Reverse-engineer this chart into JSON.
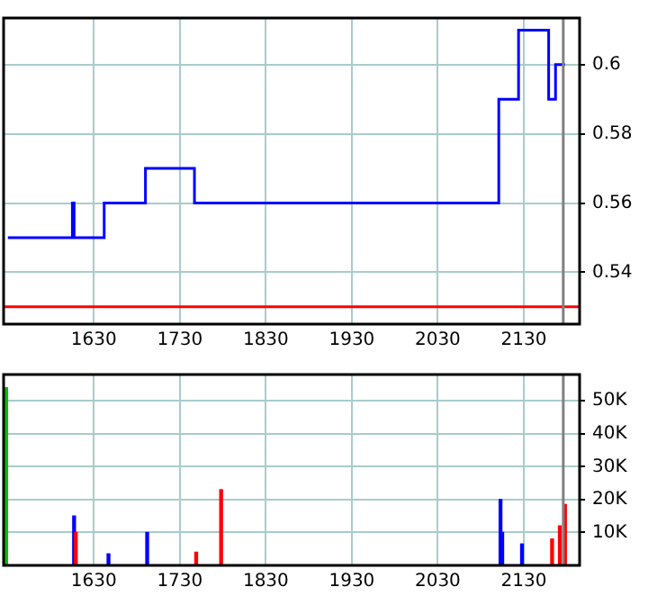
{
  "chart_data": [
    {
      "type": "step",
      "x": [
        1530,
        1605,
        1607,
        1642,
        1690,
        1747,
        2101,
        2124,
        2159,
        2167,
        2178
      ],
      "series": [
        {
          "color": "#0000ff",
          "values": [
            0.55,
            0.56,
            0.55,
            0.56,
            0.57,
            0.56,
            0.59,
            0.61,
            0.59,
            0.6,
            0.6
          ]
        }
      ],
      "xlim": [
        1525,
        2195
      ],
      "xticks": [
        1630,
        1730,
        1830,
        1930,
        2030,
        2130
      ],
      "ylim": [
        0.525,
        0.6135
      ],
      "yticks": [
        0.54,
        0.56,
        0.58,
        0.6
      ],
      "grid": true,
      "legend": false,
      "ref_lines": [
        {
          "axis": "y",
          "value": 0.53,
          "color": "#ff0000"
        },
        {
          "axis": "x",
          "value": 2176,
          "color": "#808080"
        }
      ]
    },
    {
      "type": "bar",
      "x": [
        1528,
        1607,
        1609,
        1647,
        1692,
        1749,
        1778,
        2103,
        2105,
        2128,
        2163,
        2172,
        2178
      ],
      "series": [
        {
          "values": [
            54000,
            15000,
            10000,
            3500,
            10000,
            4000,
            23000,
            20000,
            10000,
            6500,
            8000,
            12000,
            18500
          ],
          "colors": [
            "#00c000",
            "#0000ff",
            "#ff0000",
            "#0000ff",
            "#0000ff",
            "#ff0000",
            "#ff0000",
            "#0000ff",
            "#0000ff",
            "#0000ff",
            "#ff0000",
            "#ff0000",
            "#ff0000"
          ]
        }
      ],
      "xlim": [
        1525,
        2195
      ],
      "xticks": [
        1630,
        1730,
        1830,
        1930,
        2030,
        2130
      ],
      "ylim": [
        0,
        58000
      ],
      "yticks": [
        {
          "value": 10000,
          "label": "10K"
        },
        {
          "value": 20000,
          "label": "20K"
        },
        {
          "value": 30000,
          "label": "30K"
        },
        {
          "value": 40000,
          "label": "40K"
        },
        {
          "value": 50000,
          "label": "50K"
        }
      ],
      "grid": true,
      "legend": false,
      "ref_lines": [
        {
          "axis": "x",
          "value": 2176,
          "color": "#808080"
        }
      ]
    }
  ]
}
